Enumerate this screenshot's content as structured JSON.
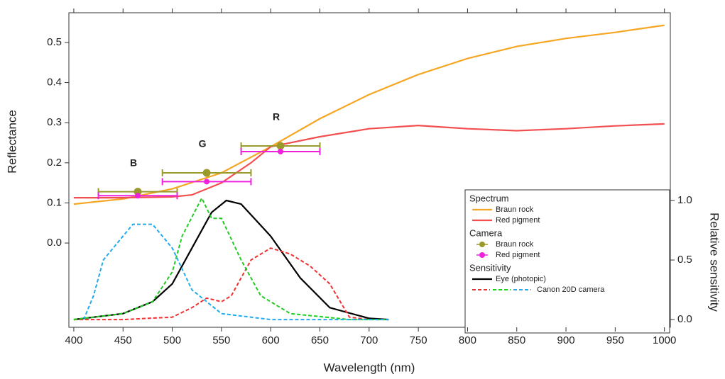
{
  "chart_data": {
    "type": "line",
    "x_label": "Wavelength (nm)",
    "y_label": "Reflectance",
    "y2_label": "Relative sensitivity",
    "xlim": [
      395,
      1006
    ],
    "ylim": [
      -0.21,
      0.574
    ],
    "y2lim": [
      -0.065,
      2.577
    ],
    "xticks": [
      400,
      450,
      500,
      550,
      600,
      650,
      700,
      750,
      800,
      850,
      900,
      950,
      1000
    ],
    "yticks": [
      {
        "value": 0,
        "label": "0.0"
      },
      0.1,
      0.2,
      0.3,
      0.4,
      0.5
    ],
    "y2ticks": [
      {
        "value": 0,
        "label": "0.0"
      },
      0.5,
      {
        "value": 1,
        "label": "1.0"
      }
    ],
    "series": [
      {
        "name": "Braun rock",
        "group": "Spectrum",
        "kind": "line",
        "color": "#f5a623",
        "x": [
          400,
          450,
          500,
          550,
          600,
          650,
          700,
          750,
          800,
          850,
          900,
          950,
          1000
        ],
        "values": [
          0.097,
          0.11,
          0.135,
          0.175,
          0.24,
          0.31,
          0.37,
          0.42,
          0.46,
          0.49,
          0.51,
          0.525,
          0.543
        ]
      },
      {
        "name": "Red pigment",
        "group": "Spectrum",
        "kind": "line",
        "color": "#f25050",
        "x": [
          400,
          450,
          500,
          520,
          550,
          580,
          600,
          650,
          700,
          750,
          800,
          850,
          900,
          950,
          1000
        ],
        "values": [
          0.113,
          0.113,
          0.115,
          0.12,
          0.15,
          0.2,
          0.24,
          0.265,
          0.285,
          0.293,
          0.285,
          0.28,
          0.285,
          0.292,
          0.297
        ]
      },
      {
        "name": "Braun rock",
        "group": "Camera",
        "kind": "errorbar",
        "color": "#9a9a2a",
        "x": [
          465,
          535,
          610
        ],
        "values": [
          0.128,
          0.175,
          0.242
        ],
        "xerr": [
          40,
          45,
          40
        ]
      },
      {
        "name": "Red pigment",
        "group": "Camera",
        "kind": "errorbar",
        "color": "#ee22dd",
        "x": [
          465,
          535,
          610
        ],
        "values": [
          0.118,
          0.153,
          0.228
        ],
        "xerr": [
          40,
          45,
          40
        ]
      },
      {
        "name": "Eye (photopic)",
        "group": "Sensitivity",
        "kind": "line",
        "axis": "y2",
        "color": "#000000",
        "x": [
          400,
          450,
          480,
          500,
          520,
          540,
          555,
          570,
          600,
          630,
          660,
          700,
          720
        ],
        "values": [
          0,
          0.05,
          0.15,
          0.3,
          0.6,
          0.9,
          1.0,
          0.97,
          0.7,
          0.35,
          0.1,
          0.01,
          0
        ]
      },
      {
        "name": "Canon 20D camera",
        "group": "Sensitivity",
        "kind": "dashed",
        "axis": "y2",
        "channels": [
          {
            "color": "#f03030",
            "x": [
              400,
              450,
              500,
              520,
              535,
              550,
              560,
              580,
              600,
              620,
              640,
              660,
              680,
              700
            ],
            "values": [
              0,
              0,
              0.02,
              0.1,
              0.18,
              0.15,
              0.2,
              0.5,
              0.6,
              0.55,
              0.45,
              0.3,
              0.02,
              0
            ]
          },
          {
            "color": "#22cc22",
            "x": [
              400,
              450,
              480,
              500,
              510,
              530,
              540,
              550,
              570,
              590,
              620,
              680,
              720
            ],
            "values": [
              0,
              0.05,
              0.15,
              0.4,
              0.7,
              1.02,
              0.85,
              0.85,
              0.5,
              0.2,
              0.05,
              0,
              0
            ]
          },
          {
            "color": "#22aaee",
            "x": [
              410,
              420,
              430,
              450,
              460,
              480,
              500,
              520,
              550,
              600,
              720
            ],
            "values": [
              0,
              0.2,
              0.5,
              0.7,
              0.8,
              0.8,
              0.6,
              0.25,
              0.05,
              0,
              0
            ]
          }
        ]
      }
    ],
    "annotations": [
      {
        "text": "B",
        "color": "#3344ee"
      },
      {
        "text": "G",
        "color": "#22bb22"
      },
      {
        "text": "R",
        "color": "#ee3333"
      }
    ]
  }
}
